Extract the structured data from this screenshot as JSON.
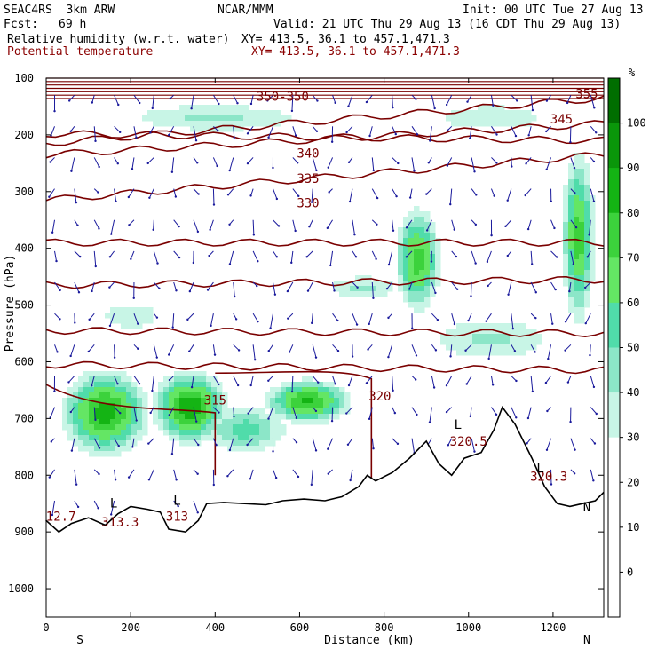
{
  "header": {
    "model": "SEAC4RS  3km ARW",
    "org": "NCAR/MMM",
    "init": "Init: 00 UTC Tue 27 Aug 13",
    "fcst_label": "Fcst:",
    "fcst_value": "69 h",
    "valid": "Valid: 21 UTC Thu 29 Aug 13 (16 CDT Thu 29 Aug 13)",
    "field1": "Relative humidity (w.r.t. water)",
    "field1_xy": "XY= 413.5, 36.1 to 457.1,471.3",
    "field2": "Potential temperature",
    "field2_xy": "XY= 413.5, 36.1 to 457.1,471.3"
  },
  "chart_data": {
    "type": "heatmap",
    "xlabel": "Distance (km)",
    "ylabel": "Pressure (hPa)",
    "xlim": [
      0,
      1320
    ],
    "ylim": [
      1050,
      100
    ],
    "x_ticks": [
      0,
      200,
      400,
      600,
      800,
      1000,
      1200
    ],
    "x_tick_labels": [
      "0",
      "200",
      "400",
      "600",
      "800",
      "1000",
      "1200"
    ],
    "y_ticks": [
      100,
      200,
      300,
      400,
      500,
      600,
      700,
      800,
      900,
      1000
    ],
    "y_tick_labels": [
      "100",
      "200",
      "300",
      "400",
      "500",
      "600",
      "700",
      "800",
      "900",
      "1000"
    ],
    "endpoint_left": "S",
    "endpoint_right": "N",
    "colorbar": {
      "unit": "%",
      "levels": [
        -10,
        0,
        10,
        20,
        30,
        40,
        50,
        60,
        70,
        80,
        90,
        100,
        110
      ],
      "tick_labels": [
        "0",
        "10",
        "20",
        "30",
        "40",
        "50",
        "60",
        "70",
        "80",
        "90",
        "100"
      ],
      "tick_values": [
        0,
        10,
        20,
        30,
        40,
        50,
        60,
        70,
        80,
        90,
        100
      ],
      "colors": [
        "#ffffff",
        "#ffffff",
        "#ffffff",
        "#ffffff",
        "#c8f5e6",
        "#8ce6c8",
        "#50dcaa",
        "#64e664",
        "#3cd23c",
        "#14b414",
        "#0a960a",
        "#006e00"
      ]
    },
    "rh_blobs": [
      {
        "x": 140,
        "p": 690,
        "rx": 130,
        "rp": 95,
        "rh": 85
      },
      {
        "x": 340,
        "p": 680,
        "rx": 110,
        "rp": 80,
        "rh": 88
      },
      {
        "x": 620,
        "p": 670,
        "rx": 130,
        "rp": 50,
        "rh": 82
      },
      {
        "x": 470,
        "p": 720,
        "rx": 150,
        "rp": 60,
        "rh": 55
      },
      {
        "x": 880,
        "p": 420,
        "rx": 70,
        "rp": 120,
        "rh": 75
      },
      {
        "x": 1260,
        "p": 380,
        "rx": 50,
        "rp": 200,
        "rh": 75
      },
      {
        "x": 400,
        "p": 170,
        "rx": 380,
        "rp": 45,
        "rh": 42
      },
      {
        "x": 1050,
        "p": 170,
        "rx": 260,
        "rp": 45,
        "rh": 40
      },
      {
        "x": 1050,
        "p": 560,
        "rx": 260,
        "rp": 70,
        "rh": 42
      },
      {
        "x": 750,
        "p": 470,
        "rx": 160,
        "rp": 40,
        "rh": 42
      },
      {
        "x": 200,
        "p": 520,
        "rx": 150,
        "rp": 50,
        "rh": 38
      }
    ],
    "theta_lines": [
      {
        "p_left": 215,
        "p_right": 135,
        "label": "355"
      },
      {
        "p_left": 198,
        "p_right": 210,
        "label": "350"
      },
      {
        "p_left": 235,
        "p_right": 180,
        "label": "345"
      },
      {
        "p_left": 315,
        "p_right": 235,
        "label": "340"
      },
      {
        "p_left": 390,
        "p_right": 390,
        "label": "335"
      },
      {
        "p_left": 465,
        "p_right": 455,
        "label": "330"
      },
      {
        "p_left": 545,
        "p_right": 550,
        "label": ""
      },
      {
        "p_left": 605,
        "p_right": 615,
        "label": ""
      }
    ],
    "contour_labels": [
      {
        "x": 560,
        "p": 140,
        "text": "350-350"
      },
      {
        "x": 1280,
        "p": 135,
        "text": "355"
      },
      {
        "x": 1220,
        "p": 180,
        "text": "345"
      },
      {
        "x": 620,
        "p": 240,
        "text": "340"
      },
      {
        "x": 620,
        "p": 285,
        "text": "335"
      },
      {
        "x": 620,
        "p": 328,
        "text": "330"
      },
      {
        "x": 400,
        "p": 675,
        "text": "315"
      },
      {
        "x": 790,
        "p": 668,
        "text": "320"
      },
      {
        "x": 1000,
        "p": 748,
        "text": "320.5"
      },
      {
        "x": 1190,
        "p": 810,
        "text": "320.3"
      },
      {
        "x": 35,
        "p": 880,
        "text": "12.7"
      },
      {
        "x": 175,
        "p": 890,
        "text": "313.3"
      },
      {
        "x": 310,
        "p": 880,
        "text": "313"
      }
    ],
    "low_markers": [
      {
        "x": 160,
        "p": 857,
        "text": "L"
      },
      {
        "x": 310,
        "p": 852,
        "text": "L"
      },
      {
        "x": 975,
        "p": 718,
        "text": "L"
      },
      {
        "x": 1170,
        "p": 795,
        "text": "L"
      },
      {
        "x": 1280,
        "p": 864,
        "text": "N"
      }
    ],
    "terrain": [
      [
        0,
        880
      ],
      [
        30,
        900
      ],
      [
        60,
        885
      ],
      [
        100,
        875
      ],
      [
        140,
        888
      ],
      [
        170,
        868
      ],
      [
        200,
        855
      ],
      [
        240,
        860
      ],
      [
        270,
        865
      ],
      [
        290,
        895
      ],
      [
        330,
        900
      ],
      [
        360,
        880
      ],
      [
        380,
        850
      ],
      [
        420,
        848
      ],
      [
        470,
        850
      ],
      [
        520,
        852
      ],
      [
        560,
        845
      ],
      [
        610,
        842
      ],
      [
        660,
        845
      ],
      [
        700,
        838
      ],
      [
        740,
        820
      ],
      [
        760,
        800
      ],
      [
        780,
        810
      ],
      [
        820,
        795
      ],
      [
        860,
        770
      ],
      [
        900,
        740
      ],
      [
        930,
        780
      ],
      [
        960,
        800
      ],
      [
        990,
        770
      ],
      [
        1030,
        760
      ],
      [
        1060,
        720
      ],
      [
        1080,
        680
      ],
      [
        1110,
        710
      ],
      [
        1150,
        770
      ],
      [
        1180,
        820
      ],
      [
        1210,
        850
      ],
      [
        1240,
        855
      ],
      [
        1270,
        850
      ],
      [
        1300,
        845
      ],
      [
        1320,
        830
      ]
    ]
  }
}
